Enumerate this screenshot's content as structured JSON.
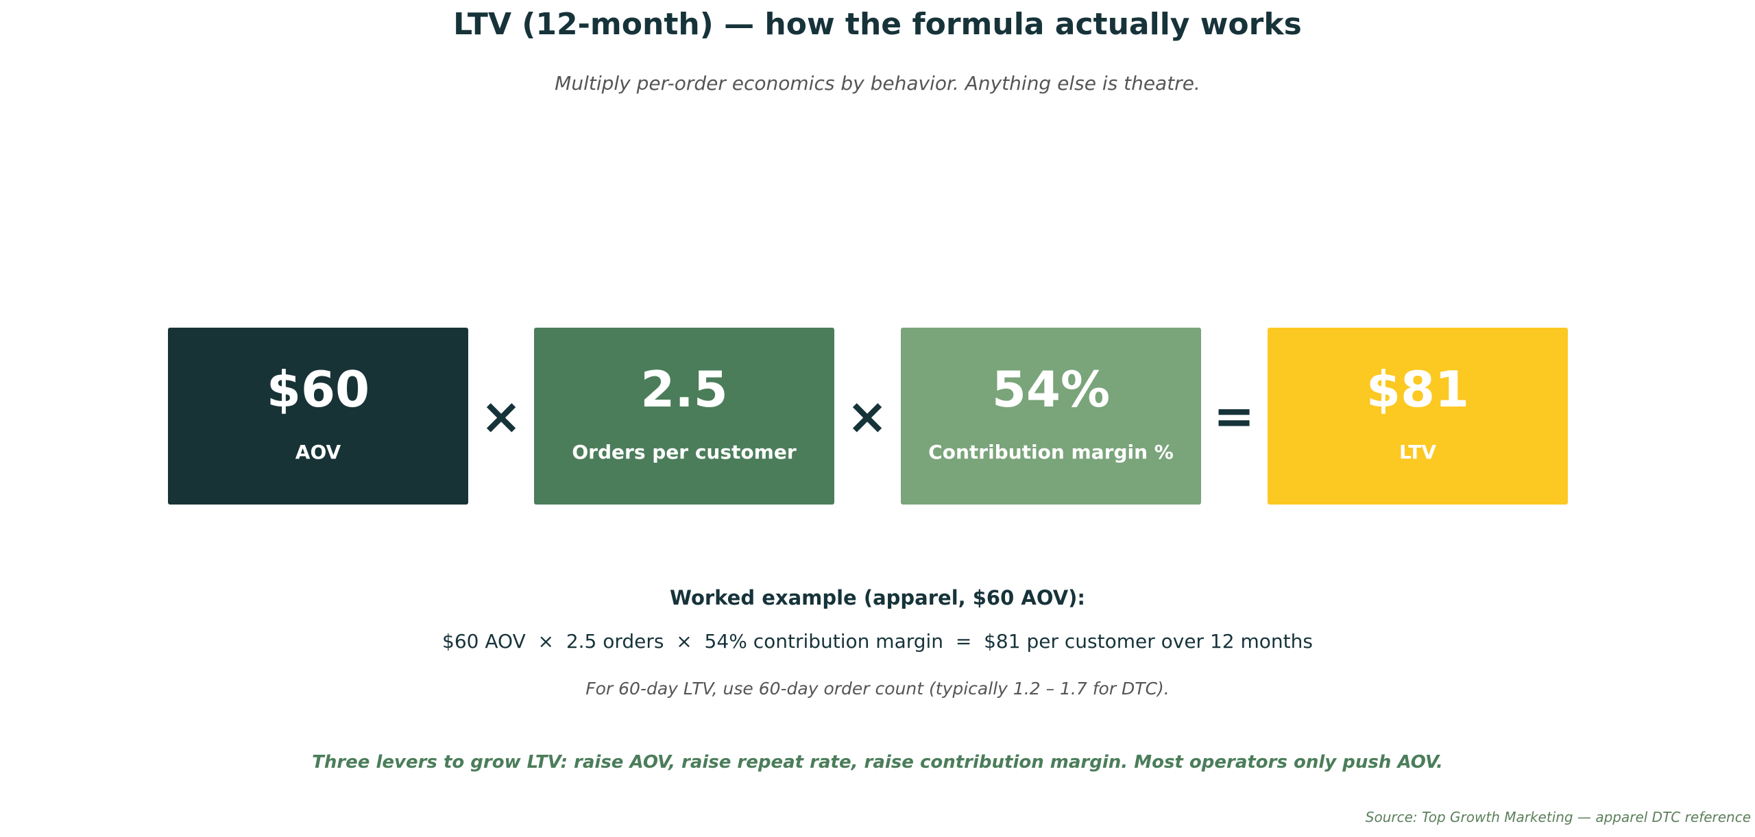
{
  "title": "LTV (12-month) — how the formula actually works",
  "subtitle": "Multiply per-order economics by behavior. Anything else is theatre.",
  "formula": {
    "boxes": [
      {
        "value": "$60",
        "label": "AOV",
        "color": "#183336"
      },
      {
        "value": "2.5",
        "label": "Orders per customer",
        "color": "#4b7d5a"
      },
      {
        "value": "54%",
        "label": "Contribution margin %",
        "color": "#7aa47a"
      },
      {
        "value": "$81",
        "label": "LTV",
        "color": "#fcc822"
      }
    ],
    "operators": [
      "×",
      "×",
      "="
    ]
  },
  "example": {
    "heading": "Worked example (apparel, $60 AOV):",
    "equation": "$60 AOV  ×  2.5 orders  ×  54% contribution margin  =  $81 per customer over 12 months",
    "note": "For 60-day LTV, use 60-day order count (typically 1.2 – 1.7 for DTC)."
  },
  "levers": "Three levers to grow LTV: raise AOV, raise repeat rate, raise contribution margin. Most operators only push AOV.",
  "source": "Source: Top Growth Marketing — apparel DTC reference",
  "colors": {
    "dark": "#17333a",
    "accent_green": "#4b7d5a",
    "muted": "#555555",
    "source_green": "#5c7f5c"
  }
}
